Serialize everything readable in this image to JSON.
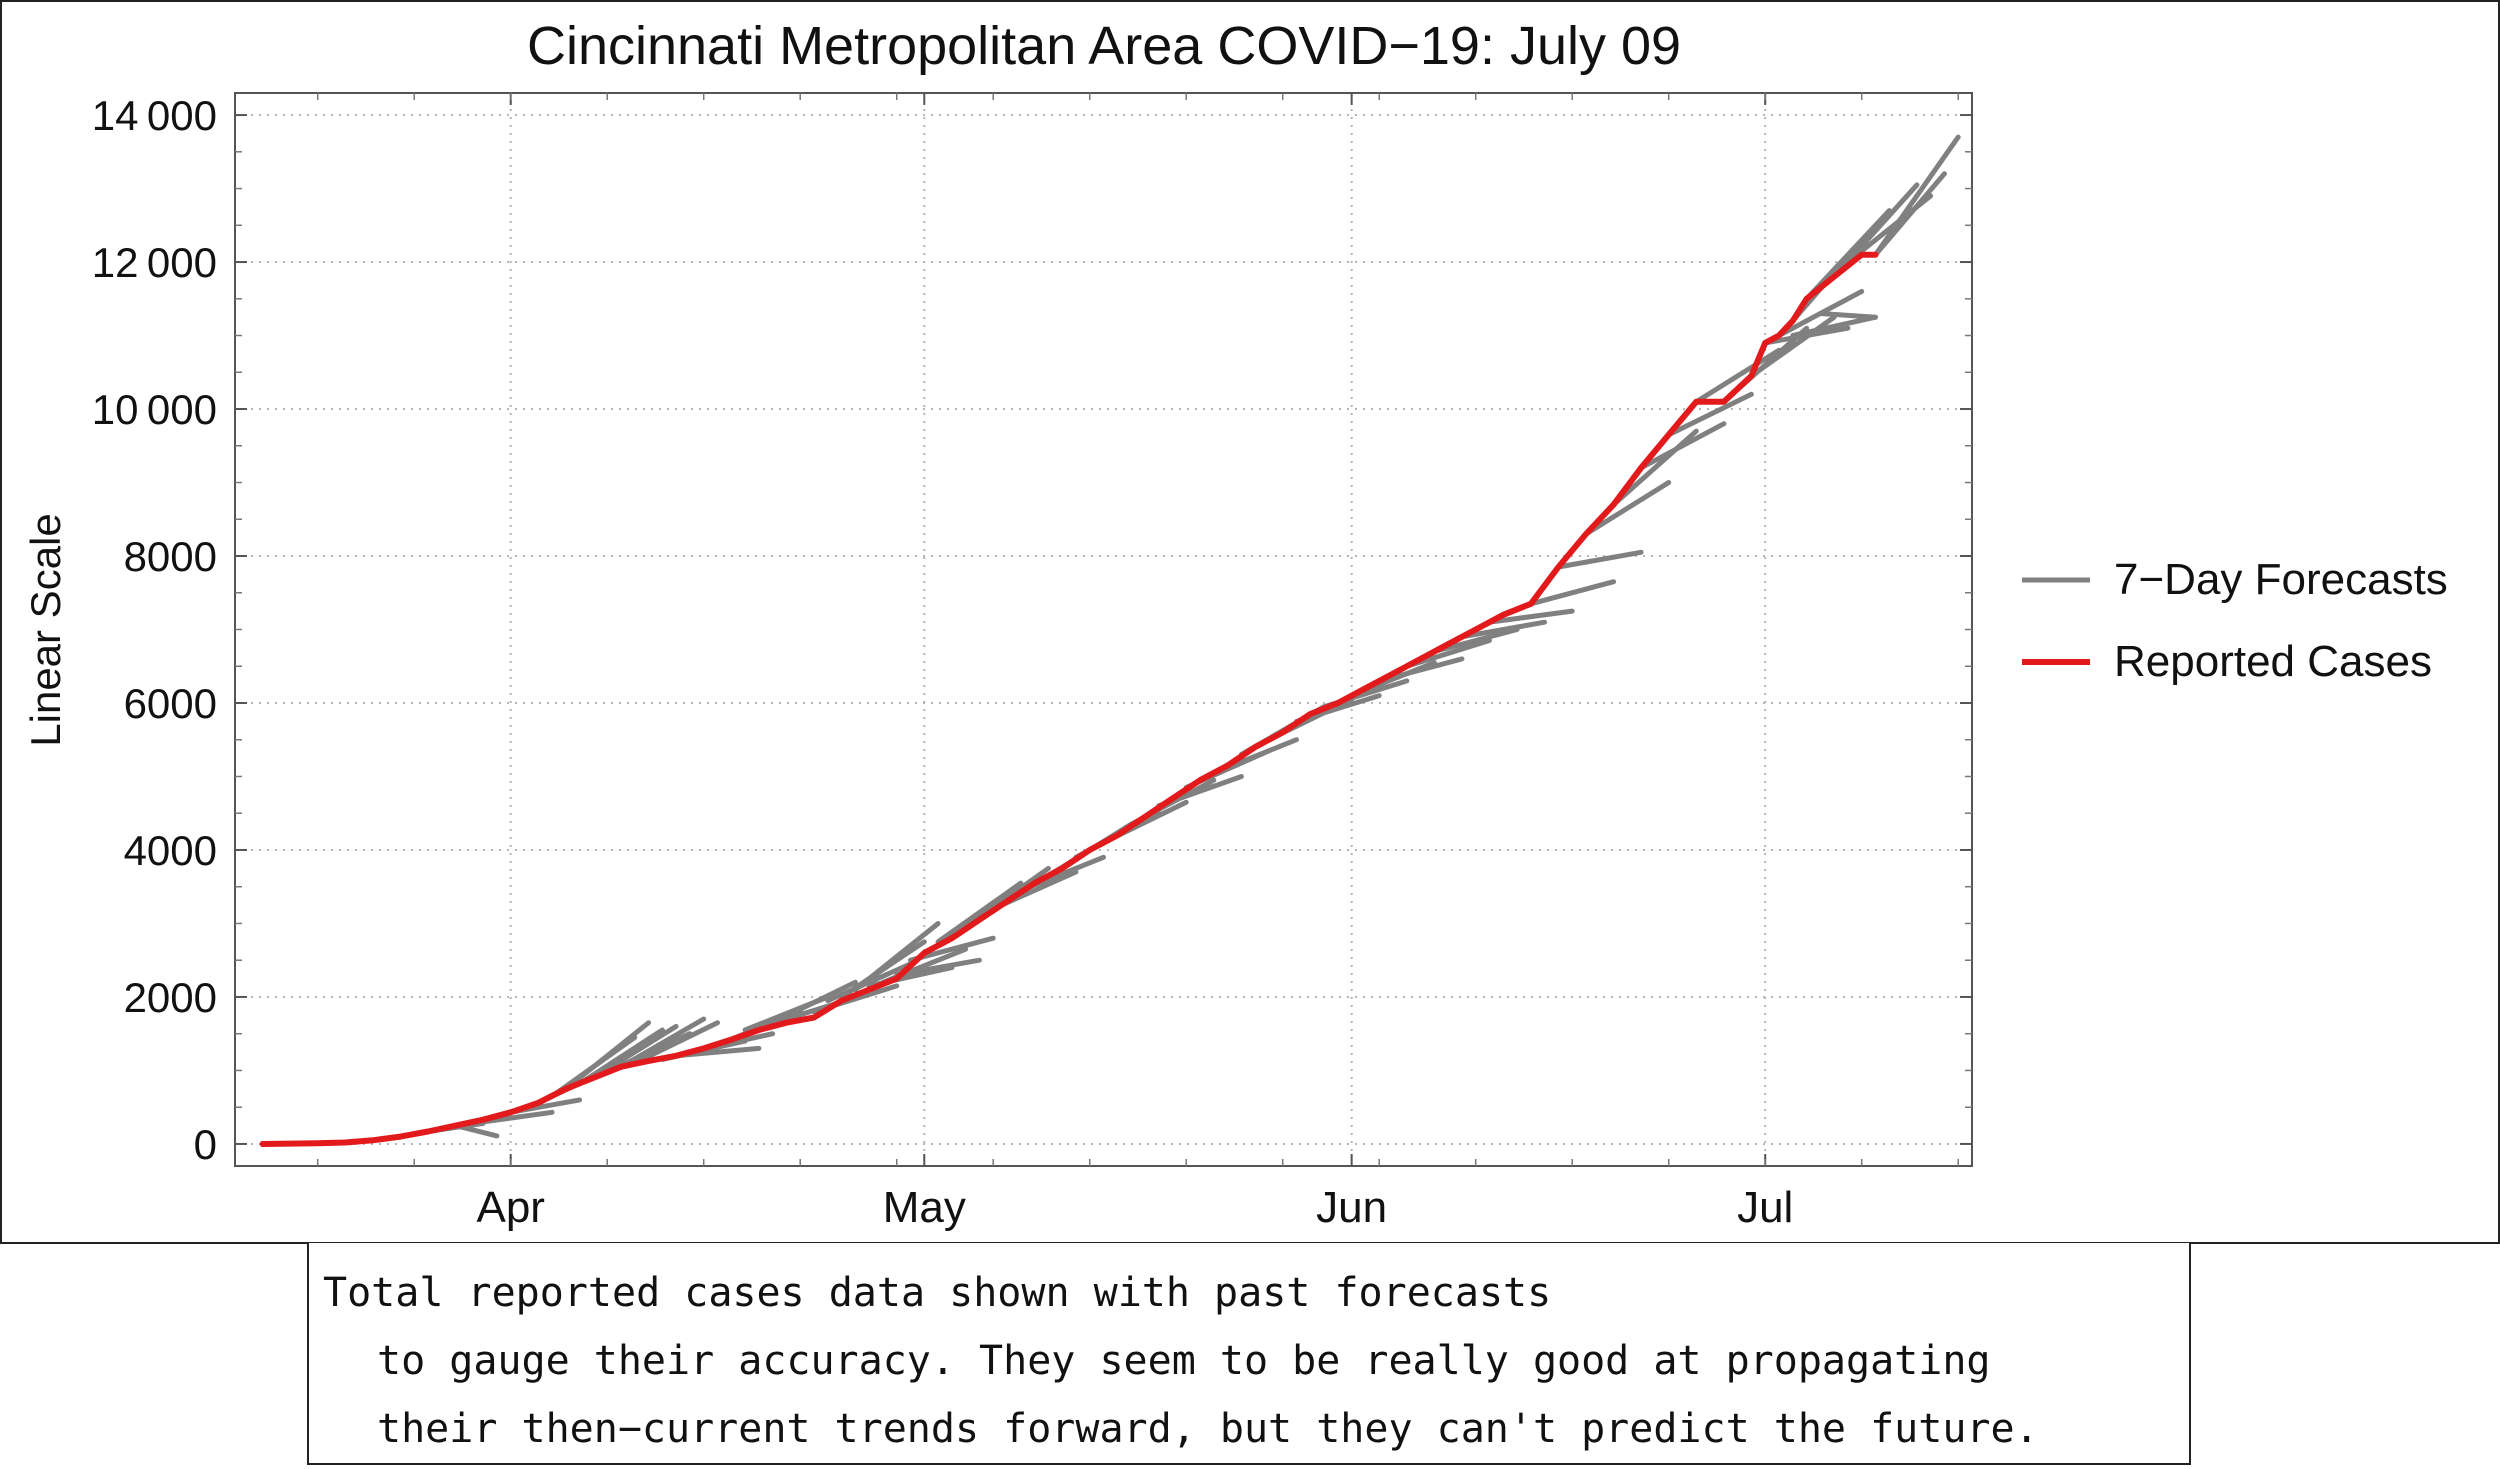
{
  "chart_data": {
    "type": "line",
    "title": "Cincinnati Metropolitan Area COVID−19: July 09",
    "ylabel": "Linear Scale",
    "xlabel": "",
    "x_unit": "days since Mar 01, 2020",
    "xlim": [
      11,
      137
    ],
    "ylim": [
      -300,
      14300
    ],
    "x_ticks": [
      {
        "label": "Apr",
        "value": 31
      },
      {
        "label": "May",
        "value": 61
      },
      {
        "label": "Jun",
        "value": 92
      },
      {
        "label": "Jul",
        "value": 122
      }
    ],
    "y_ticks": [
      {
        "label": "0",
        "value": 0
      },
      {
        "label": "2000",
        "value": 2000
      },
      {
        "label": "4000",
        "value": 4000
      },
      {
        "label": "6000",
        "value": 6000
      },
      {
        "label": "8000",
        "value": 8000
      },
      {
        "label": "10 000",
        "value": 10000
      },
      {
        "label": "12 000",
        "value": 12000
      },
      {
        "label": "14 000",
        "value": 14000
      }
    ],
    "grid": true,
    "legend": [
      {
        "label": "7−Day Forecasts",
        "color": "#808080"
      },
      {
        "label": "Reported Cases",
        "color": "#e31a1c"
      }
    ],
    "legend_position": "right",
    "series": [
      {
        "name": "Reported Cases",
        "color": "#e31a1c",
        "x": [
          13,
          15,
          17,
          19,
          21,
          23,
          25,
          27,
          29,
          31,
          33,
          35,
          37,
          39,
          41,
          43,
          45,
          47,
          49,
          51,
          53,
          55,
          57,
          59,
          61,
          63,
          65,
          67,
          69,
          71,
          73,
          75,
          77,
          79,
          81,
          83,
          85,
          87,
          89,
          91,
          93,
          95,
          97,
          99,
          101,
          103,
          105,
          107,
          109,
          111,
          113,
          115,
          117,
          119,
          121,
          122,
          123,
          124,
          125,
          127,
          129,
          130
        ],
        "y": [
          0,
          5,
          10,
          20,
          50,
          100,
          170,
          250,
          330,
          430,
          560,
          750,
          900,
          1050,
          1130,
          1200,
          1300,
          1420,
          1550,
          1650,
          1720,
          1950,
          2100,
          2250,
          2600,
          2800,
          3050,
          3300,
          3550,
          3750,
          4000,
          4200,
          4450,
          4700,
          4950,
          5150,
          5400,
          5600,
          5850,
          6000,
          6200,
          6400,
          6600,
          6800,
          7000,
          7200,
          7350,
          7850,
          8300,
          8700,
          9200,
          9650,
          10100,
          10100,
          10450,
          10900,
          11000,
          11200,
          11500,
          11800,
          12100,
          12100
        ]
      },
      {
        "name": "7−Day Forecasts",
        "color": "#808080",
        "segments": [
          {
            "x": [
              25,
              29
            ],
            "y": [
              170,
              280
            ]
          },
          {
            "x": [
              27,
              30
            ],
            "y": [
              250,
              110
            ]
          },
          {
            "x": [
              29,
              34
            ],
            "y": [
              300,
              430
            ]
          },
          {
            "x": [
              31,
              36
            ],
            "y": [
              430,
              600
            ]
          },
          {
            "x": [
              33,
              38
            ],
            "y": [
              560,
              1000
            ]
          },
          {
            "x": [
              34,
              40
            ],
            "y": [
              650,
              1450
            ]
          },
          {
            "x": [
              35,
              41
            ],
            "y": [
              750,
              1650
            ]
          },
          {
            "x": [
              36,
              42
            ],
            "y": [
              820,
              1550
            ]
          },
          {
            "x": [
              37,
              43
            ],
            "y": [
              900,
              1600
            ]
          },
          {
            "x": [
              38,
              44
            ],
            "y": [
              980,
              1500
            ]
          },
          {
            "x": [
              39,
              45
            ],
            "y": [
              1050,
              1700
            ]
          },
          {
            "x": [
              40,
              46
            ],
            "y": [
              1100,
              1650
            ]
          },
          {
            "x": [
              42,
              48
            ],
            "y": [
              1150,
              1400
            ]
          },
          {
            "x": [
              43,
              49
            ],
            "y": [
              1200,
              1300
            ]
          },
          {
            "x": [
              44,
              50
            ],
            "y": [
              1250,
              1500
            ]
          },
          {
            "x": [
              46,
              52
            ],
            "y": [
              1350,
              1800
            ]
          },
          {
            "x": [
              48,
              54
            ],
            "y": [
              1550,
              2000
            ]
          },
          {
            "x": [
              50,
              56
            ],
            "y": [
              1650,
              2200
            ]
          },
          {
            "x": [
              51,
              57
            ],
            "y": [
              1700,
              2050
            ]
          },
          {
            "x": [
              53,
              59
            ],
            "y": [
              1800,
              2150
            ]
          },
          {
            "x": [
              54,
              60
            ],
            "y": [
              1950,
              2450
            ]
          },
          {
            "x": [
              55,
              61
            ],
            "y": [
              2000,
              2750
            ]
          },
          {
            "x": [
              56,
              62
            ],
            "y": [
              2100,
              3000
            ]
          },
          {
            "x": [
              57,
              63
            ],
            "y": [
              2150,
              2400
            ]
          },
          {
            "x": [
              58,
              64
            ],
            "y": [
              2200,
              2650
            ]
          },
          {
            "x": [
              59,
              65
            ],
            "y": [
              2300,
              2500
            ]
          },
          {
            "x": [
              60,
              66
            ],
            "y": [
              2500,
              2800
            ]
          },
          {
            "x": [
              62,
              68
            ],
            "y": [
              2750,
              3550
            ]
          },
          {
            "x": [
              64,
              70
            ],
            "y": [
              2950,
              3750
            ]
          },
          {
            "x": [
              66,
              72
            ],
            "y": [
              3200,
              3700
            ]
          },
          {
            "x": [
              68,
              74
            ],
            "y": [
              3450,
              3900
            ]
          },
          {
            "x": [
              70,
              76
            ],
            "y": [
              3650,
              4350
            ]
          },
          {
            "x": [
              72,
              78
            ],
            "y": [
              3900,
              4500
            ]
          },
          {
            "x": [
              74,
              80
            ],
            "y": [
              4100,
              4650
            ]
          },
          {
            "x": [
              76,
              82
            ],
            "y": [
              4350,
              4950
            ]
          },
          {
            "x": [
              78,
              84
            ],
            "y": [
              4600,
              5000
            ]
          },
          {
            "x": [
              80,
              86
            ],
            "y": [
              4850,
              5350
            ]
          },
          {
            "x": [
              82,
              88
            ],
            "y": [
              5050,
              5500
            ]
          },
          {
            "x": [
              84,
              90
            ],
            "y": [
              5300,
              5950
            ]
          },
          {
            "x": [
              86,
              92
            ],
            "y": [
              5500,
              6050
            ]
          },
          {
            "x": [
              88,
              94
            ],
            "y": [
              5750,
              6100
            ]
          },
          {
            "x": [
              90,
              96
            ],
            "y": [
              5950,
              6300
            ]
          },
          {
            "x": [
              92,
              98
            ],
            "y": [
              6100,
              6550
            ]
          },
          {
            "x": [
              94,
              100
            ],
            "y": [
              6300,
              6600
            ]
          },
          {
            "x": [
              96,
              102
            ],
            "y": [
              6500,
              6850
            ]
          },
          {
            "x": [
              98,
              104
            ],
            "y": [
              6700,
              7000
            ]
          },
          {
            "x": [
              100,
              106
            ],
            "y": [
              6900,
              7100
            ]
          },
          {
            "x": [
              102,
              108
            ],
            "y": [
              7100,
              7250
            ]
          },
          {
            "x": [
              105,
              111
            ],
            "y": [
              7350,
              7650
            ]
          },
          {
            "x": [
              107,
              113
            ],
            "y": [
              7850,
              8050
            ]
          },
          {
            "x": [
              109,
              115
            ],
            "y": [
              8300,
              9000
            ]
          },
          {
            "x": [
              111,
              117
            ],
            "y": [
              8700,
              9700
            ]
          },
          {
            "x": [
              113,
              119
            ],
            "y": [
              9200,
              9800
            ]
          },
          {
            "x": [
              115,
              121
            ],
            "y": [
              9650,
              10200
            ]
          },
          {
            "x": [
              117,
              123
            ],
            "y": [
              10100,
              10800
            ]
          },
          {
            "x": [
              119,
              125
            ],
            "y": [
              10100,
              11100
            ]
          },
          {
            "x": [
              121,
              127
            ],
            "y": [
              10450,
              11250
            ]
          },
          {
            "x": [
              122,
              128
            ],
            "y": [
              10900,
              11100
            ]
          },
          {
            "x": [
              123,
              129
            ],
            "y": [
              11000,
              11600
            ]
          },
          {
            "x": [
              124,
              130
            ],
            "y": [
              11200,
              12500
            ]
          },
          {
            "x": [
              125,
              131
            ],
            "y": [
              11500,
              12700
            ]
          },
          {
            "x": [
              127,
              133
            ],
            "y": [
              11800,
              13050
            ]
          },
          {
            "x": [
              128,
              134
            ],
            "y": [
              12000,
              12900
            ]
          },
          {
            "x": [
              130,
              136
            ],
            "y": [
              12100,
              13700
            ]
          },
          {
            "x": [
              130,
              135
            ],
            "y": [
              12100,
              13200
            ]
          },
          {
            "x": [
              124,
              130
            ],
            "y": [
              11000,
              11250
            ]
          },
          {
            "x": [
              126,
              130
            ],
            "y": [
              11300,
              11250
            ]
          }
        ]
      }
    ]
  },
  "caption": {
    "line1": "Total reported cases data shown with past forecasts",
    "line2": "to gauge their accuracy. They seem to be really good at propagating",
    "line3": "their then−current trends forward, but they can't predict the future."
  }
}
